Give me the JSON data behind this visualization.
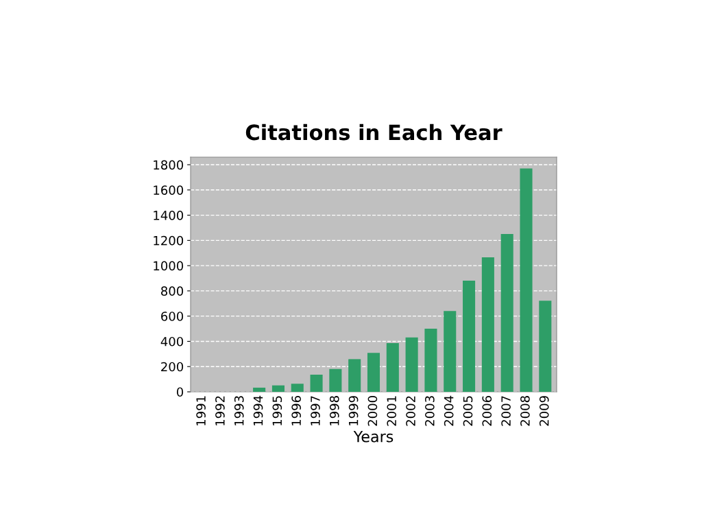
{
  "chart_data": {
    "type": "bar",
    "title": "Citations in Each Year",
    "xlabel": "Years",
    "categories": [
      "1991",
      "1992",
      "1993",
      "1994",
      "1995",
      "1996",
      "1997",
      "1998",
      "1999",
      "2000",
      "2001",
      "2002",
      "2003",
      "2004",
      "2005",
      "2006",
      "2007",
      "2008",
      "2009"
    ],
    "values": [
      0,
      0,
      0,
      33,
      51,
      64,
      136,
      181,
      259,
      308,
      386,
      431,
      500,
      640,
      881,
      1066,
      1251,
      1770,
      722
    ],
    "color": "#2e9e67",
    "ylim": [
      0,
      1860
    ],
    "yticks": [
      0,
      200,
      400,
      600,
      800,
      1000,
      1200,
      1400,
      1600,
      1800
    ],
    "grid": "y",
    "legend": false
  }
}
